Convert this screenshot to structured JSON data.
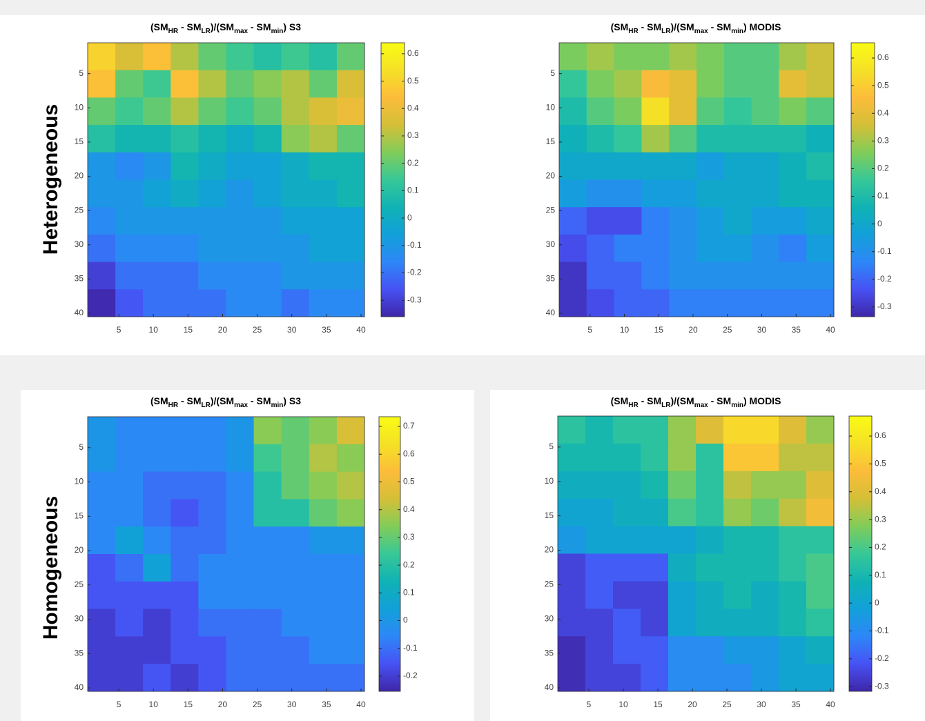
{
  "row_labels": [
    "Heterogeneous",
    "Homogeneous"
  ],
  "chart_data": [
    {
      "type": "heatmap",
      "title": [
        "(SM",
        "HR",
        " - SM",
        "LR",
        ")/(SM",
        "max",
        " - SM",
        "min",
        ") S3"
      ],
      "colormap": "parula",
      "xbins": [
        0.5,
        4.5,
        8.5,
        12.5,
        16.5,
        20.5,
        24.5,
        28.5,
        32.5,
        36.5,
        40.5
      ],
      "ybins": [
        0.5,
        4.5,
        8.5,
        12.5,
        16.5,
        20.5,
        24.5,
        28.5,
        32.5,
        36.5,
        40.5
      ],
      "xlim": [
        0.5,
        40.5
      ],
      "ylim": [
        40.5,
        0.5
      ],
      "xticks": [
        5,
        10,
        15,
        20,
        25,
        30,
        35,
        40
      ],
      "yticks": [
        5,
        10,
        15,
        20,
        25,
        30,
        35,
        40
      ],
      "clim": [
        -0.36,
        0.64
      ],
      "cticks": [
        -0.3,
        -0.2,
        -0.1,
        0,
        0.1,
        0.2,
        0.3,
        0.4,
        0.5,
        0.6
      ],
      "values": [
        [
          0.5,
          0.35,
          0.45,
          0.3,
          0.2,
          0.15,
          0.1,
          0.15,
          0.1,
          0.2
        ],
        [
          0.45,
          0.2,
          0.15,
          0.45,
          0.3,
          0.2,
          0.25,
          0.3,
          0.2,
          0.35
        ],
        [
          0.2,
          0.15,
          0.2,
          0.3,
          0.2,
          0.15,
          0.2,
          0.3,
          0.35,
          0.4
        ],
        [
          0.1,
          0.05,
          0.05,
          0.1,
          0.05,
          0.0,
          0.05,
          0.25,
          0.3,
          0.2
        ],
        [
          -0.1,
          -0.15,
          -0.1,
          0.05,
          0.0,
          -0.05,
          -0.05,
          0.0,
          0.05,
          0.05
        ],
        [
          -0.1,
          -0.1,
          -0.05,
          0.0,
          -0.05,
          -0.1,
          -0.05,
          0.0,
          0.0,
          0.05
        ],
        [
          -0.15,
          -0.1,
          -0.1,
          -0.1,
          -0.1,
          -0.1,
          -0.1,
          -0.05,
          -0.05,
          -0.05
        ],
        [
          -0.2,
          -0.15,
          -0.15,
          -0.15,
          -0.1,
          -0.1,
          -0.1,
          -0.1,
          -0.05,
          -0.05
        ],
        [
          -0.3,
          -0.2,
          -0.2,
          -0.2,
          -0.15,
          -0.15,
          -0.15,
          -0.1,
          -0.1,
          -0.1
        ],
        [
          -0.35,
          -0.25,
          -0.2,
          -0.2,
          -0.2,
          -0.15,
          -0.15,
          -0.2,
          -0.15,
          -0.15
        ]
      ]
    },
    {
      "type": "heatmap",
      "title": [
        "(SM",
        "HR",
        " - SM",
        "LR",
        ")/(SM",
        "max",
        " - SM",
        "min",
        ") MODIS"
      ],
      "colormap": "parula",
      "xbins": [
        0.5,
        4.5,
        8.5,
        12.5,
        16.5,
        20.5,
        24.5,
        28.5,
        32.5,
        36.5,
        40.5
      ],
      "ybins": [
        0.5,
        4.5,
        8.5,
        12.5,
        16.5,
        20.5,
        24.5,
        28.5,
        32.5,
        36.5,
        40.5
      ],
      "xlim": [
        0.5,
        40.5
      ],
      "ylim": [
        40.5,
        0.5
      ],
      "xticks": [
        5,
        10,
        15,
        20,
        25,
        30,
        35,
        40
      ],
      "yticks": [
        5,
        10,
        15,
        20,
        25,
        30,
        35,
        40
      ],
      "clim": [
        -0.335,
        0.655
      ],
      "cticks": [
        -0.3,
        -0.2,
        -0.1,
        0,
        0.1,
        0.2,
        0.3,
        0.4,
        0.5,
        0.6
      ],
      "values": [
        [
          0.25,
          0.3,
          0.25,
          0.25,
          0.3,
          0.25,
          0.2,
          0.2,
          0.3,
          0.35
        ],
        [
          0.15,
          0.25,
          0.3,
          0.45,
          0.4,
          0.25,
          0.2,
          0.2,
          0.4,
          0.35
        ],
        [
          0.1,
          0.2,
          0.25,
          0.55,
          0.4,
          0.2,
          0.15,
          0.2,
          0.25,
          0.2
        ],
        [
          0.05,
          0.1,
          0.15,
          0.3,
          0.2,
          0.1,
          0.1,
          0.1,
          0.1,
          0.05
        ],
        [
          0.0,
          0.0,
          0.0,
          0.0,
          0.0,
          -0.05,
          0.0,
          0.0,
          0.05,
          0.1
        ],
        [
          -0.05,
          -0.1,
          -0.1,
          -0.05,
          -0.05,
          0.0,
          0.0,
          0.0,
          0.05,
          0.05
        ],
        [
          -0.2,
          -0.25,
          -0.25,
          -0.15,
          -0.1,
          -0.05,
          0.0,
          -0.05,
          -0.05,
          0.0
        ],
        [
          -0.25,
          -0.2,
          -0.15,
          -0.15,
          -0.1,
          -0.05,
          -0.05,
          -0.1,
          -0.15,
          -0.05
        ],
        [
          -0.3,
          -0.2,
          -0.2,
          -0.15,
          -0.1,
          -0.1,
          -0.1,
          -0.1,
          -0.1,
          -0.1
        ],
        [
          -0.3,
          -0.25,
          -0.2,
          -0.2,
          -0.15,
          -0.15,
          -0.15,
          -0.15,
          -0.15,
          -0.15
        ]
      ]
    },
    {
      "type": "heatmap",
      "title": [
        "(SM",
        "HR",
        " - SM",
        "LR",
        ")/(SM",
        "max",
        " - SM",
        "min",
        ") S3"
      ],
      "colormap": "parula",
      "xbins": [
        0.5,
        4.5,
        8.5,
        12.5,
        16.5,
        20.5,
        24.5,
        28.5,
        32.5,
        36.5,
        40.5
      ],
      "ybins": [
        0.5,
        4.5,
        8.5,
        12.5,
        16.5,
        20.5,
        24.5,
        28.5,
        32.5,
        36.5,
        40.5
      ],
      "xlim": [
        0.5,
        40.5
      ],
      "ylim": [
        40.5,
        0.5
      ],
      "xticks": [
        5,
        10,
        15,
        20,
        25,
        30,
        35,
        40
      ],
      "yticks": [
        5,
        10,
        15,
        20,
        25,
        30,
        35,
        40
      ],
      "clim": [
        -0.255,
        0.735
      ],
      "cticks": [
        -0.2,
        -0.1,
        0,
        0.1,
        0.2,
        0.3,
        0.4,
        0.5,
        0.6,
        0.7
      ],
      "values": [
        [
          0.0,
          -0.05,
          -0.05,
          -0.05,
          -0.05,
          0.0,
          0.35,
          0.3,
          0.35,
          0.45
        ],
        [
          0.0,
          -0.05,
          -0.05,
          -0.05,
          -0.05,
          0.0,
          0.25,
          0.3,
          0.4,
          0.35
        ],
        [
          -0.05,
          -0.05,
          -0.1,
          -0.1,
          -0.1,
          -0.05,
          0.2,
          0.3,
          0.35,
          0.4
        ],
        [
          -0.05,
          -0.05,
          -0.1,
          -0.15,
          -0.1,
          -0.05,
          0.2,
          0.2,
          0.3,
          0.35
        ],
        [
          -0.05,
          0.05,
          -0.05,
          -0.1,
          -0.1,
          -0.05,
          -0.05,
          -0.05,
          0.0,
          0.0
        ],
        [
          -0.15,
          -0.1,
          0.05,
          -0.1,
          -0.05,
          -0.05,
          -0.05,
          -0.05,
          -0.05,
          -0.05
        ],
        [
          -0.15,
          -0.15,
          -0.15,
          -0.15,
          -0.05,
          -0.05,
          -0.05,
          -0.05,
          -0.05,
          -0.05
        ],
        [
          -0.2,
          -0.15,
          -0.2,
          -0.15,
          -0.1,
          -0.1,
          -0.1,
          -0.05,
          -0.05,
          -0.05
        ],
        [
          -0.2,
          -0.2,
          -0.2,
          -0.15,
          -0.15,
          -0.1,
          -0.1,
          -0.1,
          -0.05,
          -0.05
        ],
        [
          -0.2,
          -0.2,
          -0.15,
          -0.2,
          -0.15,
          -0.1,
          -0.1,
          -0.1,
          -0.1,
          -0.1
        ]
      ]
    },
    {
      "type": "heatmap",
      "title": [
        "(SM",
        "HR",
        " - SM",
        "LR",
        ")/(SM",
        "max",
        " - SM",
        "min",
        ") MODIS"
      ],
      "colormap": "parula",
      "xbins": [
        0.5,
        4.5,
        8.5,
        12.5,
        16.5,
        20.5,
        24.5,
        28.5,
        32.5,
        36.5,
        40.5
      ],
      "ybins": [
        0.5,
        4.5,
        8.5,
        12.5,
        16.5,
        20.5,
        24.5,
        28.5,
        32.5,
        36.5,
        40.5
      ],
      "xlim": [
        0.5,
        40.5
      ],
      "ylim": [
        40.5,
        0.5
      ],
      "xticks": [
        5,
        10,
        15,
        20,
        25,
        30,
        35,
        40
      ],
      "yticks": [
        5,
        10,
        15,
        20,
        25,
        30,
        35,
        40
      ],
      "clim": [
        -0.317,
        0.672
      ],
      "cticks": [
        -0.3,
        -0.2,
        -0.1,
        0,
        0.1,
        0.2,
        0.3,
        0.4,
        0.5,
        0.6
      ],
      "values": [
        [
          0.15,
          0.1,
          0.15,
          0.15,
          0.3,
          0.4,
          0.55,
          0.55,
          0.4,
          0.3
        ],
        [
          0.1,
          0.1,
          0.1,
          0.15,
          0.3,
          0.15,
          0.5,
          0.5,
          0.35,
          0.35
        ],
        [
          0.05,
          0.05,
          0.05,
          0.1,
          0.25,
          0.15,
          0.35,
          0.3,
          0.3,
          0.4
        ],
        [
          0.0,
          0.0,
          0.05,
          0.05,
          0.2,
          0.15,
          0.3,
          0.25,
          0.35,
          0.45
        ],
        [
          -0.05,
          0.0,
          0.0,
          0.0,
          0.0,
          0.05,
          0.1,
          0.1,
          0.15,
          0.15
        ],
        [
          -0.25,
          -0.2,
          -0.2,
          -0.2,
          0.05,
          0.1,
          0.1,
          0.1,
          0.15,
          0.2
        ],
        [
          -0.25,
          -0.2,
          -0.25,
          -0.25,
          0.0,
          0.05,
          0.1,
          0.05,
          0.1,
          0.2
        ],
        [
          -0.25,
          -0.25,
          -0.2,
          -0.25,
          0.0,
          0.05,
          0.05,
          0.05,
          0.1,
          0.15
        ],
        [
          -0.3,
          -0.25,
          -0.2,
          -0.2,
          -0.1,
          -0.1,
          -0.05,
          -0.05,
          0.0,
          0.05
        ],
        [
          -0.3,
          -0.25,
          -0.25,
          -0.2,
          -0.1,
          -0.1,
          -0.1,
          -0.05,
          0.0,
          0.0
        ]
      ]
    }
  ]
}
